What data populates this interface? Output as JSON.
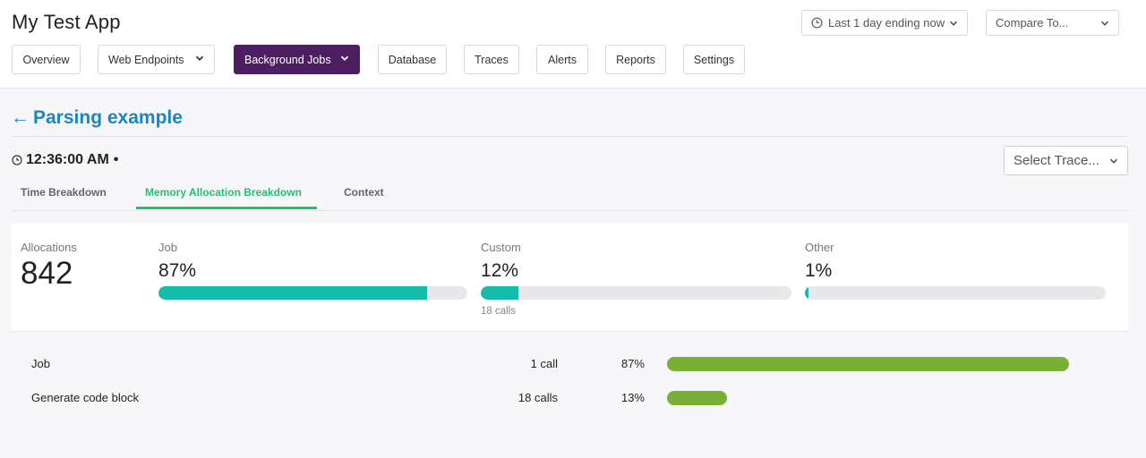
{
  "app": {
    "title": "My Test App"
  },
  "time_range": {
    "label": "Last 1 day ending now"
  },
  "compare": {
    "label": "Compare To..."
  },
  "nav": [
    {
      "label": "Overview"
    },
    {
      "label": "Web Endpoints"
    },
    {
      "label": "Background Jobs",
      "active": true
    },
    {
      "label": "Database"
    },
    {
      "label": "Traces"
    },
    {
      "label": "Alerts"
    },
    {
      "label": "Reports"
    },
    {
      "label": "Settings"
    }
  ],
  "page": {
    "back_arrow": "←",
    "title": "Parsing example",
    "timestamp": "12:36:00 AM",
    "timestamp_sep": "•"
  },
  "select_trace": {
    "label": "Select Trace..."
  },
  "tabs": [
    {
      "label": "Time Breakdown"
    },
    {
      "label": "Memory Allocation Breakdown",
      "active": true
    },
    {
      "label": "Context"
    }
  ],
  "summary": {
    "allocations": {
      "label": "Allocations",
      "value": "842"
    },
    "categories": [
      {
        "label": "Job",
        "value": "87%",
        "fraction": 0.87,
        "note": ""
      },
      {
        "label": "Custom",
        "value": "12%",
        "fraction": 0.12,
        "note": "18 calls"
      },
      {
        "label": "Other",
        "value": "1%",
        "fraction": 0.01,
        "note": ""
      }
    ]
  },
  "breakdown": [
    {
      "name": "Job",
      "calls": "1 call",
      "pct": "87%",
      "fraction": 0.87
    },
    {
      "name": "Generate code block",
      "calls": "18 calls",
      "pct": "13%",
      "fraction": 0.13
    }
  ],
  "colors": {
    "accent_purple": "#4e1e63",
    "link_blue": "#1a86c4",
    "tab_green": "#21c26e",
    "bar_teal": "#13bdaa",
    "bar_green": "#7aaf35"
  },
  "icons": {
    "clock": "clock-icon",
    "chevron": "chevron-down-icon",
    "back": "arrow-left-icon"
  }
}
